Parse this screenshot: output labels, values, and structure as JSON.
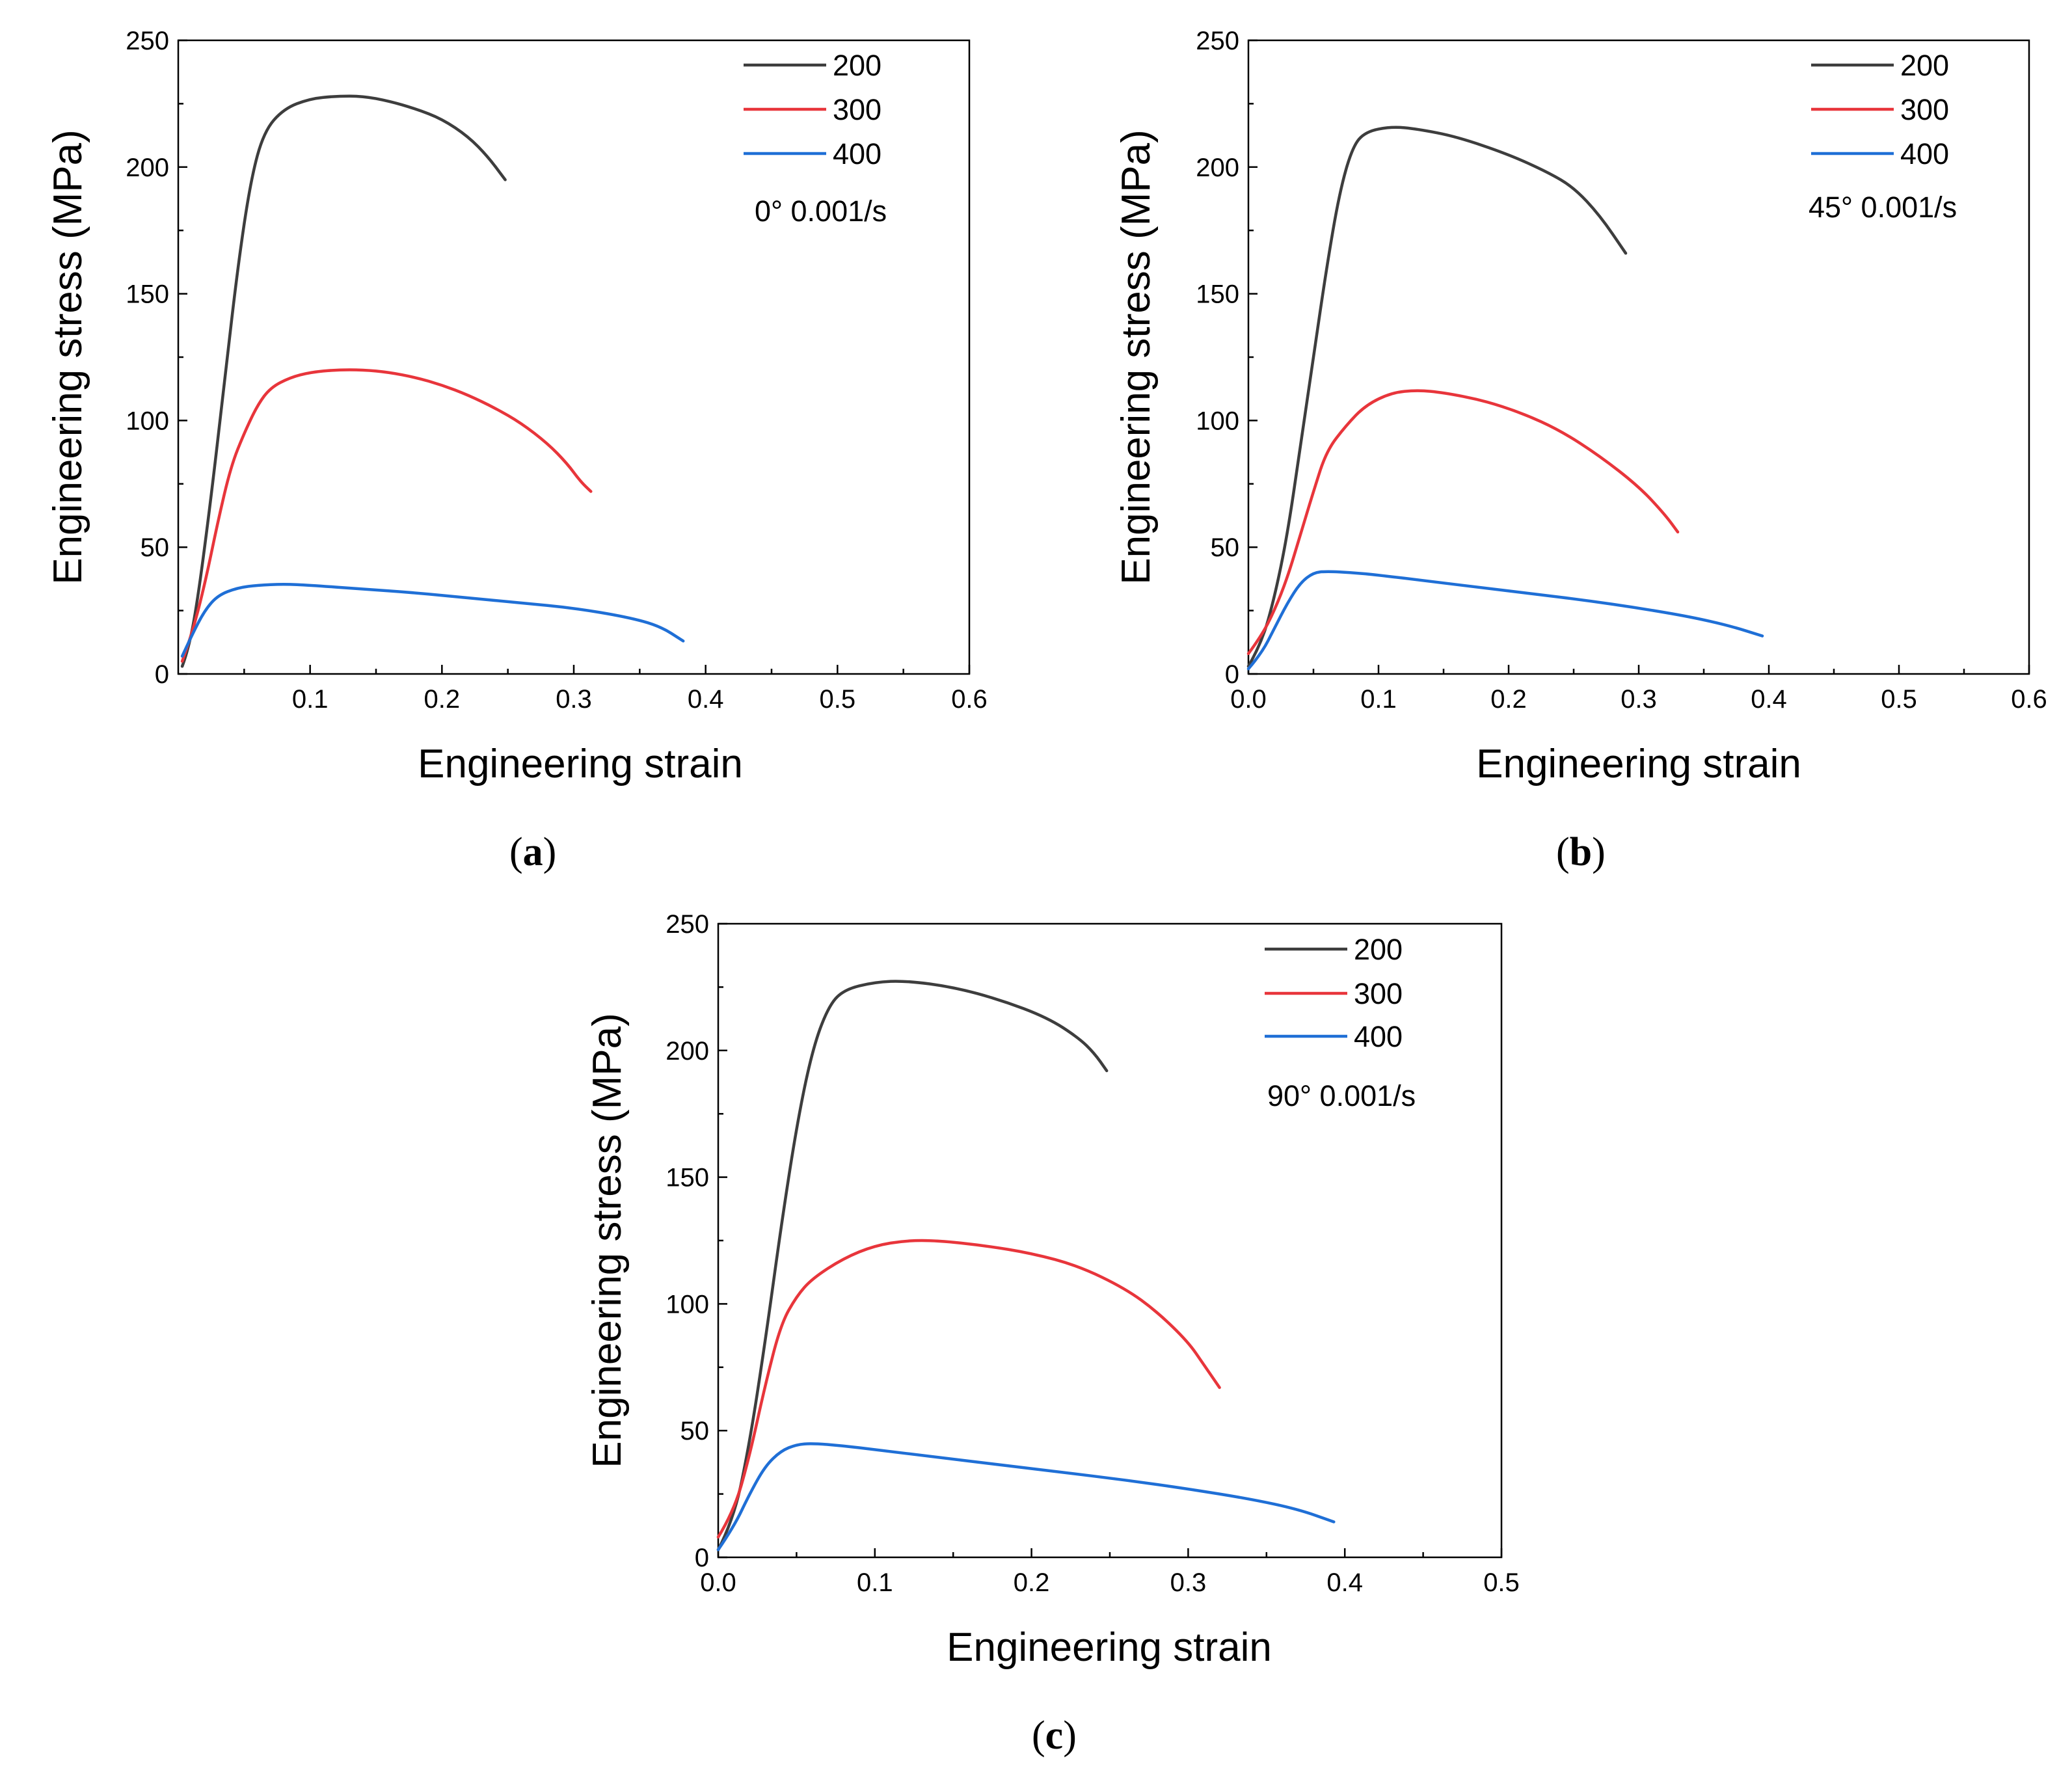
{
  "colors": {
    "s200": "#3d3d3d",
    "s300": "#e8353b",
    "s400": "#1f6fd6"
  },
  "chart_data": [
    {
      "type": "line",
      "panel": "a",
      "panel_label": "a",
      "xlabel": "Engineering strain",
      "ylabel": "Engineering stress (MPa)",
      "xlim": [
        0,
        0.6
      ],
      "ylim": [
        0,
        250
      ],
      "xticks": [
        {
          "v": 0.1,
          "label": "0.1"
        },
        {
          "v": 0.2,
          "label": "0.2"
        },
        {
          "v": 0.3,
          "label": "0.3"
        },
        {
          "v": 0.4,
          "label": "0.4"
        },
        {
          "v": 0.5,
          "label": "0.5"
        },
        {
          "v": 0.6,
          "label": "0.6"
        }
      ],
      "yticks": [
        {
          "v": 0,
          "label": "0"
        },
        {
          "v": 50,
          "label": "50"
        },
        {
          "v": 100,
          "label": "100"
        },
        {
          "v": 150,
          "label": "150"
        },
        {
          "v": 200,
          "label": "200"
        },
        {
          "v": 250,
          "label": "250"
        }
      ],
      "annotation": "0°  0.001/s",
      "series": [
        {
          "name": "200",
          "color": "#3d3d3d",
          "points": [
            [
              0.003,
              3
            ],
            [
              0.008,
              10
            ],
            [
              0.015,
              30
            ],
            [
              0.025,
              70
            ],
            [
              0.035,
              115
            ],
            [
              0.045,
              160
            ],
            [
              0.055,
              195
            ],
            [
              0.065,
              214
            ],
            [
              0.08,
              223
            ],
            [
              0.1,
              227
            ],
            [
              0.12,
              228
            ],
            [
              0.14,
              228
            ],
            [
              0.16,
              226
            ],
            [
              0.18,
              223
            ],
            [
              0.2,
              219
            ],
            [
              0.22,
              212
            ],
            [
              0.235,
              204
            ],
            [
              0.248,
              195
            ]
          ]
        },
        {
          "name": "300",
          "color": "#e8353b",
          "points": [
            [
              0.003,
              5
            ],
            [
              0.01,
              15
            ],
            [
              0.02,
              35
            ],
            [
              0.03,
              60
            ],
            [
              0.04,
              82
            ],
            [
              0.05,
              95
            ],
            [
              0.06,
              106
            ],
            [
              0.07,
              113
            ],
            [
              0.085,
              117
            ],
            [
              0.1,
              119
            ],
            [
              0.12,
              120
            ],
            [
              0.14,
              120
            ],
            [
              0.16,
              119
            ],
            [
              0.18,
              117
            ],
            [
              0.2,
              114
            ],
            [
              0.22,
              110
            ],
            [
              0.24,
              105
            ],
            [
              0.26,
              99
            ],
            [
              0.28,
              91
            ],
            [
              0.295,
              83
            ],
            [
              0.305,
              76
            ],
            [
              0.313,
              72
            ]
          ]
        },
        {
          "name": "400",
          "color": "#1f6fd6",
          "points": [
            [
              0.003,
              7
            ],
            [
              0.01,
              15
            ],
            [
              0.02,
              25
            ],
            [
              0.03,
              31
            ],
            [
              0.045,
              34
            ],
            [
              0.06,
              35
            ],
            [
              0.08,
              35.5
            ],
            [
              0.1,
              35
            ],
            [
              0.14,
              33.5
            ],
            [
              0.18,
              32
            ],
            [
              0.22,
              30
            ],
            [
              0.26,
              28
            ],
            [
              0.3,
              26
            ],
            [
              0.34,
              22.5
            ],
            [
              0.365,
              19
            ],
            [
              0.383,
              13
            ]
          ]
        }
      ]
    },
    {
      "type": "line",
      "panel": "b",
      "panel_label": "b",
      "xlabel": "Engineering strain",
      "ylabel": "Engineering stress (MPa)",
      "xlim": [
        0,
        0.6
      ],
      "ylim": [
        0,
        250
      ],
      "xticks": [
        {
          "v": 0.0,
          "label": "0.0"
        },
        {
          "v": 0.1,
          "label": "0.1"
        },
        {
          "v": 0.2,
          "label": "0.2"
        },
        {
          "v": 0.3,
          "label": "0.3"
        },
        {
          "v": 0.4,
          "label": "0.4"
        },
        {
          "v": 0.5,
          "label": "0.5"
        },
        {
          "v": 0.6,
          "label": "0.6"
        }
      ],
      "yticks": [
        {
          "v": 0,
          "label": "0"
        },
        {
          "v": 50,
          "label": "50"
        },
        {
          "v": 100,
          "label": "100"
        },
        {
          "v": 150,
          "label": "150"
        },
        {
          "v": 200,
          "label": "200"
        },
        {
          "v": 250,
          "label": "250"
        }
      ],
      "annotation": "45°  0.001/s",
      "series": [
        {
          "name": "200",
          "color": "#3d3d3d",
          "points": [
            [
              0.0,
              3
            ],
            [
              0.01,
              12
            ],
            [
              0.02,
              30
            ],
            [
              0.03,
              55
            ],
            [
              0.04,
              90
            ],
            [
              0.05,
              125
            ],
            [
              0.06,
              160
            ],
            [
              0.07,
              190
            ],
            [
              0.08,
              208
            ],
            [
              0.09,
              214
            ],
            [
              0.11,
              216
            ],
            [
              0.13,
              215
            ],
            [
              0.16,
              212
            ],
            [
              0.2,
              205
            ],
            [
              0.23,
              198
            ],
            [
              0.25,
              192
            ],
            [
              0.27,
              181
            ],
            [
              0.29,
              166
            ]
          ]
        },
        {
          "name": "300",
          "color": "#e8353b",
          "points": [
            [
              0.0,
              8
            ],
            [
              0.01,
              15
            ],
            [
              0.02,
              25
            ],
            [
              0.03,
              38
            ],
            [
              0.04,
              55
            ],
            [
              0.05,
              72
            ],
            [
              0.06,
              88
            ],
            [
              0.075,
              98
            ],
            [
              0.09,
              106
            ],
            [
              0.11,
              111
            ],
            [
              0.13,
              112
            ],
            [
              0.15,
              111
            ],
            [
              0.18,
              108
            ],
            [
              0.21,
              103
            ],
            [
              0.24,
              96
            ],
            [
              0.27,
              86
            ],
            [
              0.3,
              74
            ],
            [
              0.32,
              63
            ],
            [
              0.33,
              56
            ]
          ]
        },
        {
          "name": "400",
          "color": "#1f6fd6",
          "points": [
            [
              0.0,
              2
            ],
            [
              0.01,
              8
            ],
            [
              0.02,
              18
            ],
            [
              0.03,
              28
            ],
            [
              0.04,
              36
            ],
            [
              0.05,
              40
            ],
            [
              0.06,
              40.5
            ],
            [
              0.08,
              40
            ],
            [
              0.1,
              39
            ],
            [
              0.14,
              36.5
            ],
            [
              0.18,
              34
            ],
            [
              0.22,
              31.5
            ],
            [
              0.26,
              29
            ],
            [
              0.3,
              26
            ],
            [
              0.34,
              22.5
            ],
            [
              0.37,
              19
            ],
            [
              0.395,
              15
            ]
          ]
        }
      ]
    },
    {
      "type": "line",
      "panel": "c",
      "panel_label": "c",
      "xlabel": "Engineering strain",
      "ylabel": "Engineering stress (MPa)",
      "xlim": [
        0,
        0.5
      ],
      "ylim": [
        0,
        250
      ],
      "xticks": [
        {
          "v": 0.0,
          "label": "0.0"
        },
        {
          "v": 0.1,
          "label": "0.1"
        },
        {
          "v": 0.2,
          "label": "0.2"
        },
        {
          "v": 0.3,
          "label": "0.3"
        },
        {
          "v": 0.4,
          "label": "0.4"
        },
        {
          "v": 0.5,
          "label": "0.5"
        }
      ],
      "yticks": [
        {
          "v": 0,
          "label": "0"
        },
        {
          "v": 50,
          "label": "50"
        },
        {
          "v": 100,
          "label": "100"
        },
        {
          "v": 150,
          "label": "150"
        },
        {
          "v": 200,
          "label": "200"
        },
        {
          "v": 250,
          "label": "250"
        }
      ],
      "annotation": "90°  0.001/s",
      "series": [
        {
          "name": "200",
          "color": "#3d3d3d",
          "points": [
            [
              0.0,
              3
            ],
            [
              0.01,
              15
            ],
            [
              0.02,
              45
            ],
            [
              0.03,
              85
            ],
            [
              0.04,
              130
            ],
            [
              0.05,
              170
            ],
            [
              0.06,
              200
            ],
            [
              0.07,
              217
            ],
            [
              0.08,
              224
            ],
            [
              0.1,
              227
            ],
            [
              0.12,
              227.5
            ],
            [
              0.15,
              225
            ],
            [
              0.18,
              220
            ],
            [
              0.21,
              213
            ],
            [
              0.23,
              205
            ],
            [
              0.24,
              199
            ],
            [
              0.248,
              192
            ]
          ]
        },
        {
          "name": "300",
          "color": "#e8353b",
          "points": [
            [
              0.0,
              8
            ],
            [
              0.01,
              18
            ],
            [
              0.02,
              40
            ],
            [
              0.03,
              68
            ],
            [
              0.04,
              92
            ],
            [
              0.05,
              103
            ],
            [
              0.06,
              110
            ],
            [
              0.08,
              118
            ],
            [
              0.1,
              123
            ],
            [
              0.12,
              125
            ],
            [
              0.14,
              125
            ],
            [
              0.17,
              123
            ],
            [
              0.2,
              120
            ],
            [
              0.23,
              115
            ],
            [
              0.26,
              106
            ],
            [
              0.28,
              97
            ],
            [
              0.3,
              85
            ],
            [
              0.31,
              76
            ],
            [
              0.32,
              67
            ]
          ]
        },
        {
          "name": "400",
          "color": "#1f6fd6",
          "points": [
            [
              0.0,
              3
            ],
            [
              0.01,
              12
            ],
            [
              0.02,
              25
            ],
            [
              0.03,
              36
            ],
            [
              0.04,
              42
            ],
            [
              0.05,
              44.5
            ],
            [
              0.06,
              45
            ],
            [
              0.08,
              44
            ],
            [
              0.1,
              42.5
            ],
            [
              0.14,
              39.5
            ],
            [
              0.18,
              36.5
            ],
            [
              0.22,
              33.5
            ],
            [
              0.26,
              30.5
            ],
            [
              0.3,
              27
            ],
            [
              0.34,
              23
            ],
            [
              0.37,
              19
            ],
            [
              0.393,
              14
            ]
          ]
        }
      ]
    }
  ]
}
